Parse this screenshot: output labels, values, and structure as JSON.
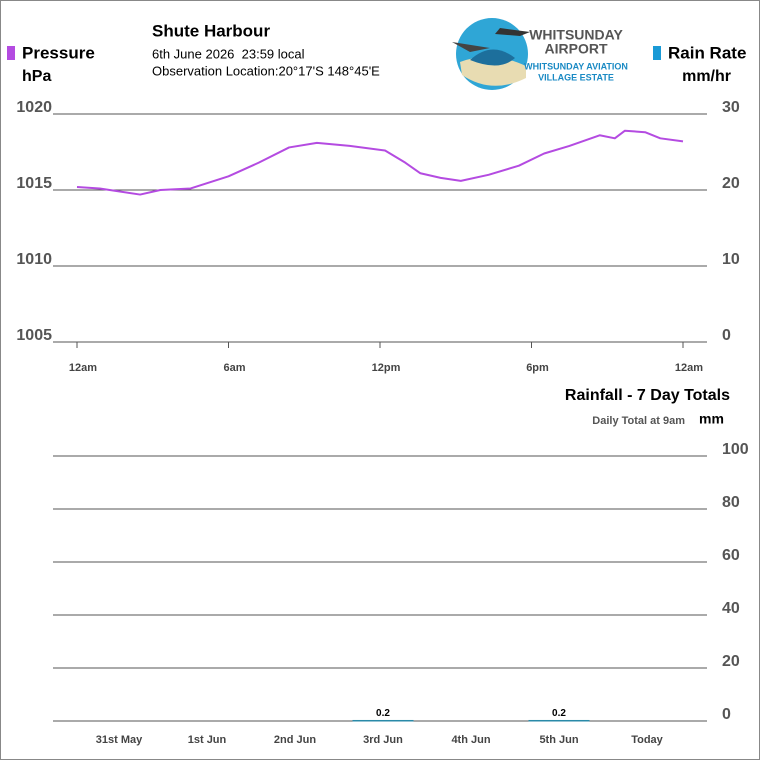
{
  "header": {
    "station": "Shute Harbour",
    "time": "6th June 2026  23:59 local",
    "location": "Observation Location:20°17'S 148°45'E",
    "logo": [
      "WHITSUNDAY",
      "AIRPORT",
      "WHITSUNDAY AVIATION",
      "VILLAGE ESTATE"
    ]
  },
  "chart_data": [
    {
      "type": "line",
      "y_label": "hPa",
      "y2_label": "mm/hr",
      "x": [
        0,
        0.9,
        2.5,
        3.3,
        4.5,
        6,
        7.2,
        8.4,
        9.5,
        10.8,
        12.2,
        13,
        13.6,
        14.4,
        15.2,
        16.3,
        17.5,
        18.5,
        19.5,
        20.7,
        21.3,
        21.7,
        22.5,
        23.1,
        24
      ],
      "xlim": [
        0,
        24
      ],
      "xticks": [
        {
          "value": 0,
          "label": "12am"
        },
        {
          "value": 6,
          "label": "6am"
        },
        {
          "value": 12,
          "label": "12pm"
        },
        {
          "value": 18,
          "label": "6pm"
        },
        {
          "value": 24,
          "label": "12am"
        }
      ],
      "ylim": [
        1005,
        1020
      ],
      "yticks": [
        1005,
        1010,
        1015,
        1020
      ],
      "y2lim": [
        0,
        30
      ],
      "y2ticks": [
        0,
        10,
        20,
        30
      ],
      "grid": true,
      "series": [
        {
          "name": "Pressure",
          "color": "#b44be1",
          "values": [
            1015.2,
            1015.1,
            1014.7,
            1015.0,
            1015.1,
            1015.9,
            1016.8,
            1017.8,
            1018.1,
            1017.9,
            1017.6,
            1016.8,
            1016.1,
            1015.8,
            1015.6,
            1016.0,
            1016.6,
            1017.4,
            1017.9,
            1018.6,
            1018.4,
            1018.9,
            1018.8,
            1018.4,
            1018.2
          ]
        },
        {
          "name": "Rain Rate",
          "color": "#1a9ad6",
          "axis": "y2",
          "values": [
            0,
            0,
            0,
            0,
            0,
            0,
            0,
            0,
            0,
            0,
            0,
            0,
            0,
            0,
            0,
            0,
            0,
            0,
            0,
            0,
            0,
            0,
            0,
            0,
            0
          ]
        }
      ]
    },
    {
      "type": "bar",
      "title": "Rainfall - 7 Day Totals",
      "subtitle": "Daily Total at 9am",
      "y_label": "mm",
      "categories": [
        "31st May",
        "1st Jun",
        "2nd Jun",
        "3rd Jun",
        "4th Jun",
        "5th Jun",
        "Today"
      ],
      "values": [
        0,
        0,
        0,
        0.2,
        0,
        0.2,
        0
      ],
      "color": "#2a8aa8",
      "ylim": [
        0,
        100
      ],
      "yticks": [
        0,
        20,
        40,
        60,
        80,
        100
      ],
      "grid": true
    }
  ]
}
